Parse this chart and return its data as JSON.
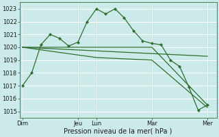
{
  "title": "Pression niveau de la mer( hPa )",
  "bg_color": "#cceaea",
  "grid_color": "#ffffff",
  "line_color": "#2d6e2d",
  "ylim": [
    1014.5,
    1023.5
  ],
  "yticks": [
    1015,
    1016,
    1017,
    1018,
    1019,
    1020,
    1021,
    1022,
    1023
  ],
  "day_labels": [
    "Dim",
    "Jeu",
    "Lun",
    "Mar",
    "Mer"
  ],
  "day_positions": [
    0,
    6,
    8,
    14,
    20
  ],
  "xlim": [
    -0.3,
    21.0
  ],
  "series": {
    "line1": {
      "x": [
        0,
        1,
        2,
        3,
        4,
        5,
        6,
        7,
        8,
        9,
        10,
        11,
        12,
        13,
        14,
        15,
        16,
        17,
        18,
        19,
        20
      ],
      "y": [
        1017.0,
        1018.0,
        1020.2,
        1021.0,
        1020.7,
        1020.1,
        1020.4,
        1022.0,
        1023.0,
        1022.6,
        1023.0,
        1022.3,
        1021.3,
        1020.5,
        1020.3,
        1020.2,
        1019.0,
        1018.5,
        1016.9,
        1015.1,
        1015.5
      ]
    },
    "line2": {
      "x": [
        0,
        2,
        3,
        4,
        5,
        6,
        7,
        8,
        9,
        10,
        11,
        12,
        13,
        14,
        20
      ],
      "y": [
        1020.0,
        1020.0,
        1020.0,
        1020.0,
        1020.0,
        1020.0,
        1020.0,
        1020.0,
        1020.0,
        1020.0,
        1020.0,
        1020.0,
        1020.0,
        1020.0,
        1015.5
      ]
    },
    "line3": {
      "x": [
        0,
        20
      ],
      "y": [
        1020.0,
        1019.3
      ]
    },
    "line4": {
      "x": [
        0,
        5,
        8,
        14,
        20
      ],
      "y": [
        1020.0,
        1019.5,
        1019.2,
        1019.0,
        1015.3
      ]
    }
  }
}
